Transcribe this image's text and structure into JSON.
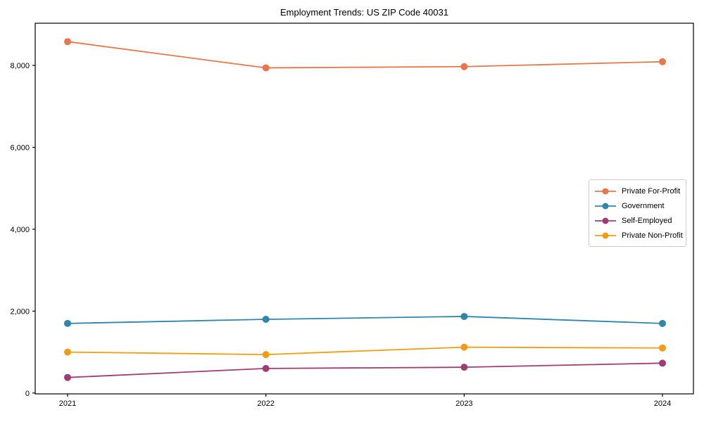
{
  "chart_data": {
    "type": "line",
    "title": "Employment Trends: US ZIP Code 40031",
    "x": [
      2021,
      2022,
      2023,
      2024
    ],
    "xtick_labels": [
      "2021",
      "2022",
      "2023",
      "2024"
    ],
    "series": [
      {
        "name": "Private For-Profit",
        "color": "#E8764A",
        "values": [
          8580,
          7940,
          7970,
          8090
        ]
      },
      {
        "name": "Government",
        "color": "#2E86AB",
        "values": [
          1700,
          1800,
          1870,
          1700
        ]
      },
      {
        "name": "Self-Employed",
        "color": "#A23B72",
        "values": [
          380,
          600,
          630,
          730
        ]
      },
      {
        "name": "Private Non-Profit",
        "color": "#F39C12",
        "values": [
          1000,
          940,
          1120,
          1100
        ]
      }
    ],
    "yticks": [
      0,
      2000,
      4000,
      6000,
      8000
    ],
    "ytick_labels": [
      "0",
      "2,000",
      "4,000",
      "6,000",
      "8,000"
    ],
    "ylim": [
      -20,
      9030
    ],
    "grid": false,
    "marker": "circle",
    "legend_position": "center-right",
    "axis_color": "#000000",
    "legend_border_color": "#cccccc",
    "background_color": "#ffffff"
  }
}
